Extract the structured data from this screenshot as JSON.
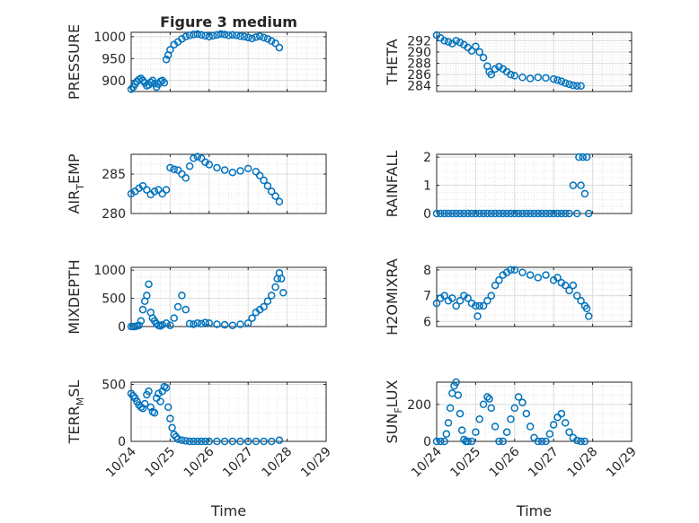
{
  "figure": {
    "title": "Figure 3 medium",
    "marker_color": "#0072BD",
    "xlabel": "Time",
    "xticks": [
      "10/24",
      "10/25",
      "10/26",
      "10/27",
      "10/28",
      "10/29"
    ],
    "xlim": [
      "10/24",
      "10/29"
    ]
  },
  "chart_data": [
    {
      "type": "scatter",
      "panel": "pressure",
      "ylabel": {
        "main": "PRESSURE"
      },
      "ylim": [
        875,
        1010
      ],
      "yticks": [
        900,
        950,
        1000
      ],
      "grid": true,
      "x": [
        0.0,
        0.05,
        0.1,
        0.15,
        0.2,
        0.25,
        0.3,
        0.35,
        0.4,
        0.45,
        0.5,
        0.55,
        0.6,
        0.65,
        0.7,
        0.75,
        0.8,
        0.85,
        0.9,
        0.95,
        1.0,
        1.1,
        1.2,
        1.3,
        1.4,
        1.5,
        1.6,
        1.7,
        1.8,
        1.9,
        2.0,
        2.1,
        2.2,
        2.3,
        2.4,
        2.5,
        2.6,
        2.7,
        2.8,
        2.9,
        3.0,
        3.1,
        3.2,
        3.3,
        3.4,
        3.5,
        3.6,
        3.7,
        3.8
      ],
      "y": [
        880,
        885,
        892,
        898,
        902,
        905,
        900,
        895,
        888,
        890,
        896,
        900,
        893,
        885,
        892,
        898,
        900,
        895,
        948,
        958,
        970,
        982,
        988,
        995,
        1000,
        1003,
        1005,
        1006,
        1004,
        1002,
        1000,
        1002,
        1004,
        1006,
        1005,
        1003,
        1004,
        1003,
        1001,
        1000,
        998,
        996,
        999,
        1001,
        998,
        995,
        990,
        985,
        975
      ]
    },
    {
      "type": "scatter",
      "panel": "theta",
      "ylabel": {
        "main": "THETA"
      },
      "ylim": [
        283,
        293.5
      ],
      "yticks": [
        284,
        286,
        288,
        290,
        292
      ],
      "grid": true,
      "x": [
        0.0,
        0.1,
        0.2,
        0.3,
        0.4,
        0.5,
        0.6,
        0.7,
        0.8,
        0.9,
        1.0,
        1.1,
        1.2,
        1.3,
        1.35,
        1.4,
        1.5,
        1.6,
        1.7,
        1.8,
        1.9,
        2.0,
        2.2,
        2.4,
        2.6,
        2.8,
        3.0,
        3.1,
        3.2,
        3.3,
        3.4,
        3.5,
        3.6,
        3.7
      ],
      "y": [
        293,
        292.5,
        292,
        291.8,
        291.5,
        292,
        291.7,
        291.3,
        290.8,
        290.2,
        291,
        290,
        289,
        287.5,
        286.5,
        286,
        287,
        287.4,
        287,
        286.5,
        286,
        285.8,
        285.5,
        285.3,
        285.5,
        285.4,
        285.2,
        285,
        284.8,
        284.5,
        284.3,
        284.1,
        284,
        284
      ]
    },
    {
      "type": "scatter",
      "panel": "air_temp",
      "ylabel": {
        "main": "AIR",
        "sub": "T",
        "tail": "EMP"
      },
      "ylim": [
        280,
        287.5
      ],
      "yticks": [
        280,
        285
      ],
      "grid": true,
      "x": [
        0.0,
        0.1,
        0.2,
        0.3,
        0.4,
        0.5,
        0.6,
        0.7,
        0.8,
        0.9,
        1.0,
        1.1,
        1.2,
        1.3,
        1.4,
        1.5,
        1.6,
        1.7,
        1.8,
        1.9,
        2.0,
        2.2,
        2.4,
        2.6,
        2.8,
        3.0,
        3.2,
        3.3,
        3.4,
        3.5,
        3.6,
        3.7,
        3.8
      ],
      "y": [
        282.5,
        282.8,
        283.2,
        283.5,
        283,
        282.4,
        282.8,
        283,
        282.5,
        283,
        285.8,
        285.6,
        285.5,
        285,
        284.5,
        286,
        287,
        287.2,
        287,
        286.5,
        286.2,
        285.8,
        285.5,
        285.2,
        285.4,
        285.7,
        285.3,
        284.8,
        284.2,
        283.5,
        282.8,
        282.2,
        281.5
      ]
    },
    {
      "type": "scatter",
      "panel": "rainfall",
      "ylabel": {
        "main": "RAINFALL"
      },
      "ylim": [
        0,
        2.1
      ],
      "yticks": [
        0,
        1,
        2
      ],
      "grid": true,
      "x": [
        0.0,
        0.1,
        0.2,
        0.3,
        0.4,
        0.5,
        0.6,
        0.7,
        0.8,
        0.9,
        1.0,
        1.1,
        1.2,
        1.3,
        1.4,
        1.5,
        1.6,
        1.7,
        1.8,
        1.9,
        2.0,
        2.1,
        2.2,
        2.3,
        2.4,
        2.5,
        2.6,
        2.7,
        2.8,
        2.9,
        3.0,
        3.1,
        3.2,
        3.3,
        3.4,
        3.5,
        3.6,
        3.65,
        3.7,
        3.75,
        3.8,
        3.85,
        3.9
      ],
      "y": [
        0,
        0,
        0,
        0,
        0,
        0,
        0,
        0,
        0,
        0,
        0,
        0,
        0,
        0,
        0,
        0,
        0,
        0,
        0,
        0,
        0,
        0,
        0,
        0,
        0,
        0,
        0,
        0,
        0,
        0,
        0,
        0,
        0,
        0,
        0,
        1,
        0,
        2,
        1,
        2,
        0.7,
        2,
        0
      ]
    },
    {
      "type": "scatter",
      "panel": "mixdepth",
      "ylabel": {
        "main": "MIXDEPTH"
      },
      "ylim": [
        0,
        1050
      ],
      "yticks": [
        0,
        500,
        1000
      ],
      "grid": true,
      "x": [
        0.0,
        0.05,
        0.1,
        0.15,
        0.2,
        0.25,
        0.3,
        0.35,
        0.4,
        0.45,
        0.5,
        0.55,
        0.6,
        0.65,
        0.7,
        0.75,
        0.8,
        0.9,
        1.0,
        1.1,
        1.2,
        1.3,
        1.4,
        1.5,
        1.6,
        1.7,
        1.8,
        1.9,
        2.0,
        2.2,
        2.4,
        2.6,
        2.8,
        3.0,
        3.1,
        3.2,
        3.3,
        3.4,
        3.5,
        3.6,
        3.7,
        3.75,
        3.8,
        3.85,
        3.9
      ],
      "y": [
        0,
        0,
        0,
        10,
        20,
        100,
        300,
        450,
        550,
        750,
        250,
        150,
        100,
        50,
        20,
        10,
        30,
        60,
        20,
        150,
        350,
        550,
        300,
        50,
        40,
        60,
        50,
        70,
        60,
        40,
        30,
        20,
        40,
        60,
        150,
        250,
        300,
        350,
        450,
        550,
        700,
        850,
        950,
        850,
        600
      ]
    },
    {
      "type": "scatter",
      "panel": "h2o_mixing",
      "ylabel": {
        "main": "H2OMIXRA"
      },
      "ylim": [
        5.8,
        8.1
      ],
      "yticks": [
        6,
        7,
        8
      ],
      "grid": true,
      "x": [
        0.0,
        0.1,
        0.2,
        0.3,
        0.4,
        0.5,
        0.6,
        0.7,
        0.8,
        0.9,
        1.0,
        1.05,
        1.1,
        1.2,
        1.3,
        1.4,
        1.5,
        1.6,
        1.7,
        1.8,
        1.9,
        2.0,
        2.2,
        2.4,
        2.6,
        2.8,
        3.0,
        3.1,
        3.2,
        3.3,
        3.4,
        3.5,
        3.6,
        3.7,
        3.8,
        3.85,
        3.9
      ],
      "y": [
        6.7,
        6.9,
        7.0,
        6.8,
        6.9,
        6.6,
        6.8,
        7.0,
        6.9,
        6.7,
        6.6,
        6.2,
        6.6,
        6.6,
        6.8,
        7.0,
        7.4,
        7.6,
        7.8,
        7.9,
        8.0,
        8.0,
        7.9,
        7.8,
        7.7,
        7.8,
        7.6,
        7.7,
        7.5,
        7.4,
        7.2,
        7.4,
        7.0,
        6.8,
        6.6,
        6.5,
        6.2
      ]
    },
    {
      "type": "scatter",
      "panel": "terr_msl",
      "ylabel": {
        "main": "TERR",
        "sub": "M",
        "tail": "SL"
      },
      "ylim": [
        0,
        520
      ],
      "yticks": [
        0,
        500
      ],
      "grid": true,
      "x": [
        0.0,
        0.05,
        0.1,
        0.15,
        0.2,
        0.25,
        0.3,
        0.35,
        0.4,
        0.45,
        0.5,
        0.55,
        0.6,
        0.65,
        0.7,
        0.75,
        0.8,
        0.85,
        0.9,
        0.95,
        1.0,
        1.05,
        1.1,
        1.15,
        1.2,
        1.3,
        1.4,
        1.5,
        1.6,
        1.7,
        1.8,
        1.9,
        2.0,
        2.2,
        2.4,
        2.6,
        2.8,
        3.0,
        3.2,
        3.4,
        3.6,
        3.8
      ],
      "y": [
        420,
        400,
        380,
        350,
        320,
        300,
        290,
        330,
        410,
        440,
        300,
        260,
        250,
        380,
        420,
        350,
        440,
        480,
        470,
        300,
        200,
        120,
        60,
        40,
        20,
        10,
        5,
        0,
        0,
        0,
        0,
        0,
        0,
        0,
        0,
        0,
        0,
        0,
        0,
        0,
        0,
        10
      ]
    },
    {
      "type": "scatter",
      "panel": "sun_flux",
      "ylabel": {
        "main": "SUN",
        "sub": "F",
        "tail": "LUX"
      },
      "ylim": [
        0,
        320
      ],
      "yticks": [
        0,
        200
      ],
      "grid": true,
      "x": [
        0.0,
        0.1,
        0.2,
        0.25,
        0.3,
        0.35,
        0.4,
        0.45,
        0.5,
        0.55,
        0.6,
        0.65,
        0.7,
        0.75,
        0.8,
        0.9,
        1.0,
        1.1,
        1.2,
        1.3,
        1.35,
        1.4,
        1.5,
        1.6,
        1.7,
        1.8,
        1.9,
        2.0,
        2.1,
        2.2,
        2.3,
        2.4,
        2.5,
        2.6,
        2.7,
        2.8,
        2.9,
        3.0,
        3.1,
        3.2,
        3.3,
        3.4,
        3.5,
        3.6,
        3.7,
        3.8
      ],
      "y": [
        0,
        0,
        0,
        40,
        100,
        180,
        260,
        300,
        320,
        250,
        150,
        60,
        10,
        0,
        0,
        0,
        50,
        120,
        200,
        240,
        230,
        180,
        80,
        0,
        0,
        50,
        120,
        180,
        240,
        210,
        150,
        80,
        20,
        0,
        0,
        0,
        40,
        90,
        130,
        150,
        100,
        50,
        20,
        5,
        0,
        0
      ]
    }
  ]
}
